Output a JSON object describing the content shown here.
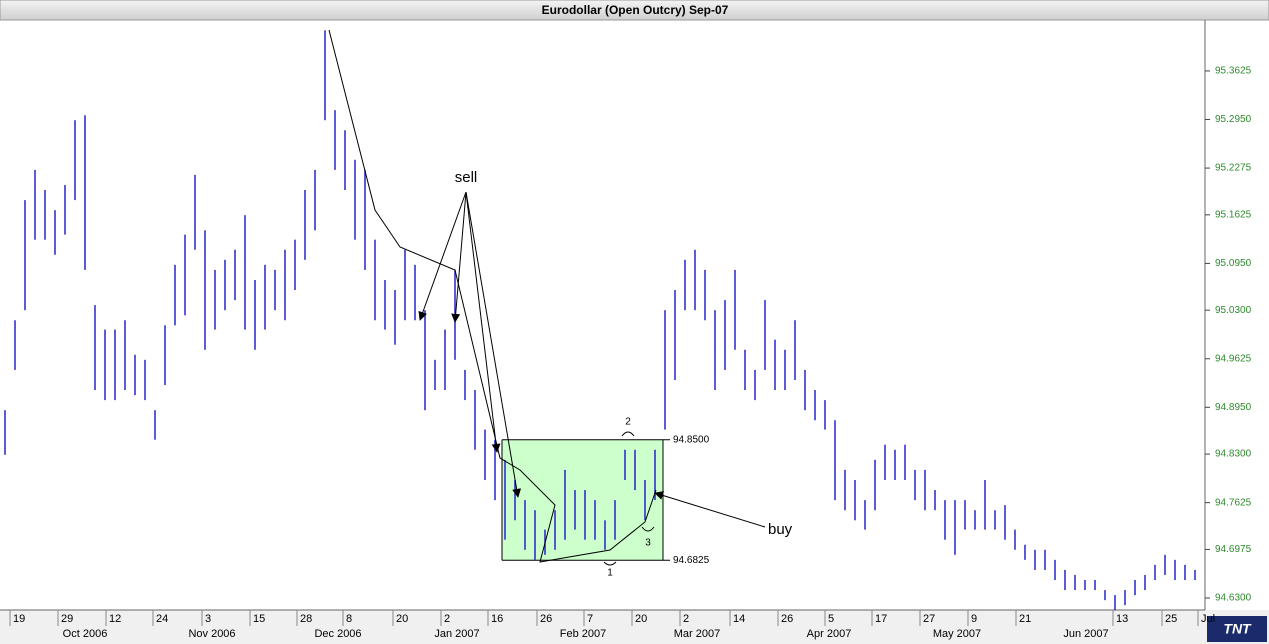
{
  "chart_data": {
    "type": "ohlc",
    "title": "Eurodollar (Open Outcry) Sep-07",
    "color": "#2424c8",
    "high": [
      94.891,
      95.016,
      95.183,
      95.225,
      95.197,
      95.169,
      95.204,
      95.294,
      95.301,
      95.037,
      95.003,
      95.003,
      95.016,
      94.968,
      94.961,
      94.891,
      95.009,
      95.093,
      95.135,
      95.218,
      95.141,
      95.086,
      95.1,
      95.114,
      95.162,
      95.072,
      95.093,
      95.086,
      95.114,
      95.128,
      95.197,
      95.225,
      95.419,
      95.308,
      95.28,
      95.239,
      95.225,
      95.128,
      95.072,
      95.058,
      95.114,
      95.093,
      95.03,
      94.961,
      95.003,
      95.086,
      94.947,
      94.919,
      94.864,
      94.85,
      94.822,
      94.794,
      94.766,
      94.752,
      94.725,
      94.752,
      94.808,
      94.78,
      94.78,
      94.766,
      94.738,
      94.766,
      94.836,
      94.836,
      94.794,
      94.836,
      95.03,
      95.058,
      95.1,
      95.114,
      95.086,
      95.03,
      95.044,
      95.086,
      94.975,
      94.947,
      95.044,
      94.989,
      94.975,
      95.016,
      94.947,
      94.919,
      94.905,
      94.877,
      94.808,
      94.794,
      94.766,
      94.822,
      94.843,
      94.836,
      94.843,
      94.808,
      94.808,
      94.78,
      94.766,
      94.766,
      94.766,
      94.752,
      94.794,
      94.752,
      94.759,
      94.725,
      94.704,
      94.697,
      94.697,
      94.683,
      94.669,
      94.662,
      94.655,
      94.655,
      94.641,
      94.634,
      94.641,
      94.655,
      94.662,
      94.676,
      94.69,
      94.683,
      94.676,
      94.669
    ],
    "low": [
      94.829,
      94.947,
      95.03,
      95.128,
      95.128,
      95.107,
      95.135,
      95.183,
      95.086,
      94.919,
      94.905,
      94.905,
      94.919,
      94.912,
      94.905,
      94.85,
      94.926,
      95.009,
      95.023,
      95.114,
      94.975,
      95.003,
      95.03,
      95.044,
      95.003,
      94.975,
      95.003,
      95.03,
      95.016,
      95.058,
      95.1,
      95.141,
      95.294,
      95.225,
      95.197,
      95.128,
      95.086,
      95.016,
      95.003,
      94.982,
      95.016,
      95.016,
      94.891,
      94.919,
      94.919,
      94.961,
      94.905,
      94.836,
      94.794,
      94.766,
      94.711,
      94.738,
      94.697,
      94.683,
      94.69,
      94.697,
      94.711,
      94.725,
      94.711,
      94.711,
      94.697,
      94.711,
      94.794,
      94.78,
      94.738,
      94.766,
      94.864,
      94.933,
      95.03,
      95.03,
      95.016,
      94.919,
      94.947,
      94.975,
      94.919,
      94.905,
      94.947,
      94.919,
      94.919,
      94.933,
      94.891,
      94.877,
      94.864,
      94.766,
      94.752,
      94.738,
      94.725,
      94.752,
      94.794,
      94.794,
      94.794,
      94.766,
      94.752,
      94.752,
      94.711,
      94.69,
      94.725,
      94.725,
      94.725,
      94.725,
      94.711,
      94.697,
      94.683,
      94.669,
      94.669,
      94.655,
      94.641,
      94.641,
      94.641,
      94.641,
      94.627,
      94.613,
      94.62,
      94.634,
      94.641,
      94.655,
      94.662,
      94.655,
      94.655,
      94.655
    ],
    "xlim": [
      -0.5,
      120
    ],
    "xticks": [
      {
        "value": 0.5,
        "label": "19"
      },
      {
        "value": 5.3,
        "label": "29"
      },
      {
        "value": 10.1,
        "label": "12"
      },
      {
        "value": 14.8,
        "label": "24"
      },
      {
        "value": 19.7,
        "label": "3"
      },
      {
        "value": 24.5,
        "label": "15"
      },
      {
        "value": 29.2,
        "label": "28"
      },
      {
        "value": 33.8,
        "label": "8"
      },
      {
        "value": 38.8,
        "label": "20"
      },
      {
        "value": 43.6,
        "label": "2"
      },
      {
        "value": 48.3,
        "label": "16"
      },
      {
        "value": 53.2,
        "label": "26"
      },
      {
        "value": 57.9,
        "label": "7"
      },
      {
        "value": 62.7,
        "label": "20"
      },
      {
        "value": 67.5,
        "label": "2"
      },
      {
        "value": 72.5,
        "label": "14"
      },
      {
        "value": 77.3,
        "label": "26"
      },
      {
        "value": 82,
        "label": "5"
      },
      {
        "value": 86.7,
        "label": "17"
      },
      {
        "value": 91.5,
        "label": "27"
      },
      {
        "value": 96.3,
        "label": "9"
      },
      {
        "value": 101.1,
        "label": "21"
      },
      {
        "value": 110.8,
        "label": "13"
      },
      {
        "value": 115.7,
        "label": "25"
      },
      {
        "value": 119.3,
        "label": "Jul"
      }
    ],
    "month_ticks": [
      {
        "value": 8,
        "label": "Oct 2006"
      },
      {
        "value": 20.7,
        "label": "Nov 2006"
      },
      {
        "value": 33.3,
        "label": "Dec 2006"
      },
      {
        "value": 45.2,
        "label": "Jan 2007"
      },
      {
        "value": 57.8,
        "label": "Feb 2007"
      },
      {
        "value": 69.2,
        "label": "Mar 2007"
      },
      {
        "value": 82.4,
        "label": "Apr 2007"
      },
      {
        "value": 95.2,
        "label": "May 2007"
      },
      {
        "value": 108.1,
        "label": "Jun 2007"
      }
    ],
    "ylim": [
      94.6133,
      95.4333
    ],
    "yticks": [
      {
        "value": 94.63,
        "label": "94.6300"
      },
      {
        "value": 94.6975,
        "label": "94.6975"
      },
      {
        "value": 94.7625,
        "label": "94.7625"
      },
      {
        "value": 94.83,
        "label": "94.8300"
      },
      {
        "value": 94.895,
        "label": "94.8950"
      },
      {
        "value": 94.9625,
        "label": "94.9625"
      },
      {
        "value": 95.03,
        "label": "95.0300"
      },
      {
        "value": 95.095,
        "label": "95.0950"
      },
      {
        "value": 95.1625,
        "label": "95.1625"
      },
      {
        "value": 95.2275,
        "label": "95.2275"
      },
      {
        "value": 95.295,
        "label": "95.2950"
      },
      {
        "value": 95.3625,
        "label": "95.3625"
      }
    ],
    "annotations": {
      "sell": "sell",
      "buy": "buy",
      "points": [
        "1",
        "2",
        "3"
      ],
      "range": {
        "high": 94.85,
        "low": 94.6825,
        "high_label": "94.8500",
        "low_label": "94.6825",
        "color": "#ccffcc"
      }
    },
    "logo": "TNT"
  }
}
